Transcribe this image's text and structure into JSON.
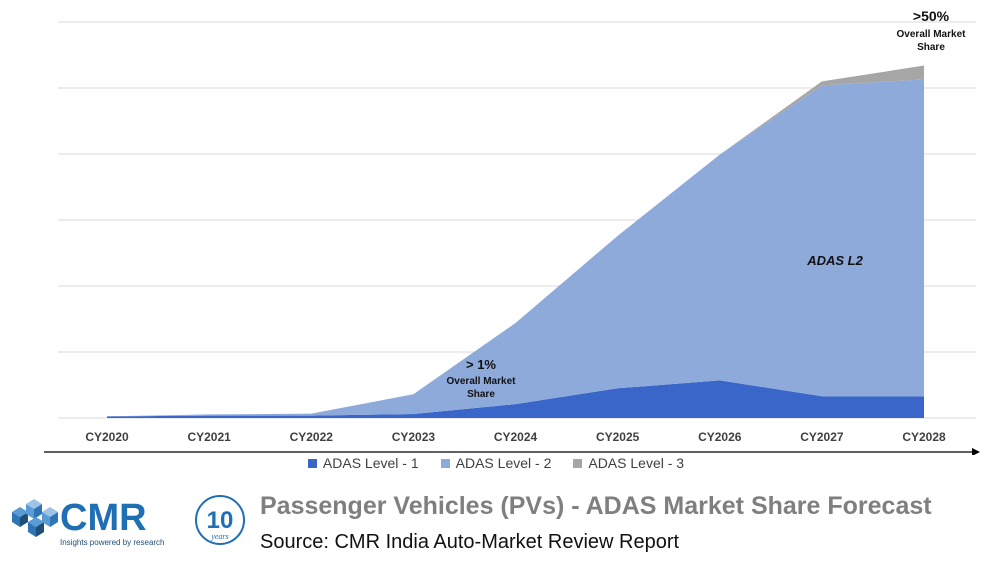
{
  "chart_data": {
    "type": "area",
    "stacked": true,
    "categories": [
      "CY2020",
      "CY2021",
      "CY2022",
      "CY2023",
      "CY2024",
      "CY2025",
      "CY2026",
      "CY2027",
      "CY2028"
    ],
    "series": [
      {
        "name": "ADAS Level - 1",
        "color": "#3a66c9",
        "values": [
          0.4,
          0.6,
          0.6,
          1.0,
          3.5,
          7.5,
          9.5,
          5.5,
          5.5
        ]
      },
      {
        "name": "ADAS Level - 2",
        "color": "#8eaadb",
        "values": [
          0,
          0.3,
          0.5,
          5.0,
          20.5,
          38.5,
          57.0,
          78.5,
          80.0
        ]
      },
      {
        "name": "ADAS Level - 3",
        "color": "#a6a6a6",
        "values": [
          0,
          0,
          0,
          0,
          0,
          0,
          0,
          1.0,
          3.5
        ]
      }
    ],
    "ylim": [
      0,
      100
    ],
    "grid": true,
    "legend_position": "bottom",
    "annotations": {
      "l2_label": "ADAS L2",
      "mid_value": "> 1%",
      "mid_line1": "Overall Market",
      "mid_line2": "Share",
      "top_value": ">50%",
      "top_line1": "Overall Market",
      "top_line2": "Share"
    }
  },
  "legend": [
    {
      "label": "ADAS Level - 1",
      "color": "#3a66c9"
    },
    {
      "label": "ADAS Level - 2",
      "color": "#8eaadb"
    },
    {
      "label": "ADAS Level - 3",
      "color": "#a6a6a6"
    }
  ],
  "footer": {
    "title": "Passenger Vehicles (PVs) - ADAS Market Share Forecast",
    "source": "Source: CMR India Auto-Market Review Report"
  },
  "logo": {
    "brand": "CMR",
    "tagline": "Insights powered by research",
    "badge_number": "10",
    "badge_text": "years"
  }
}
